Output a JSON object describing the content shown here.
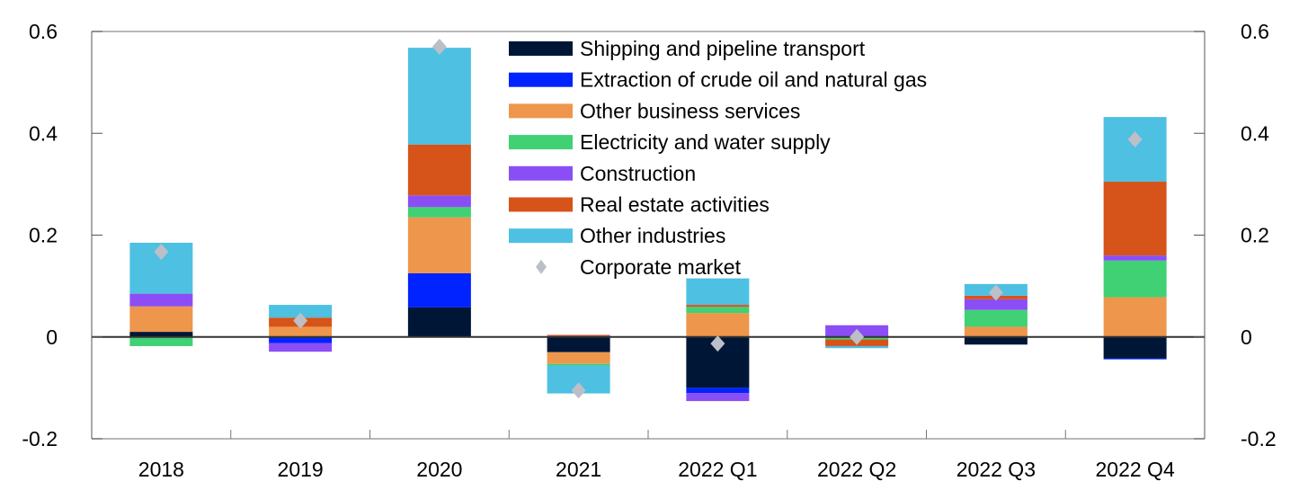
{
  "chart_data": {
    "type": "bar",
    "stacked": true,
    "title": "",
    "xlabel": "",
    "ylabel": "",
    "ylim": [
      -0.2,
      0.6
    ],
    "yticks": [
      -0.2,
      0,
      0.2,
      0.4,
      0.6
    ],
    "ytick_labels": [
      "-0.2",
      "0",
      "0.2",
      "0.4",
      "0.6"
    ],
    "y2ticks": [
      -0.2,
      0,
      0.2,
      0.4,
      0.6
    ],
    "y2tick_labels": [
      "-0.2",
      "0",
      "0.2",
      "0.4",
      "0.6"
    ],
    "grid": false,
    "legend_position": "top-center",
    "categories": [
      "2018",
      "2019",
      "2020",
      "2021",
      "2022 Q1",
      "2022 Q2",
      "2022 Q3",
      "2022 Q4"
    ],
    "series": [
      {
        "name": "Shipping and pipeline transport",
        "color": "#001636",
        "values": [
          0.01,
          0.0,
          0.058,
          -0.03,
          -0.1,
          0.0,
          -0.015,
          -0.042
        ]
      },
      {
        "name": "Extraction of crude oil and natural gas",
        "color": "#0023ff",
        "values": [
          0.0,
          -0.012,
          0.067,
          0.0,
          -0.01,
          -0.001,
          0.0,
          -0.002
        ]
      },
      {
        "name": "Other business services",
        "color": "#ee964b",
        "values": [
          0.05,
          0.02,
          0.11,
          -0.023,
          0.047,
          0.0,
          0.02,
          0.078
        ]
      },
      {
        "name": "Electricity and water supply",
        "color": "#3fd174",
        "values": [
          -0.018,
          0.0,
          0.02,
          -0.003,
          0.012,
          -0.004,
          0.033,
          0.072
        ]
      },
      {
        "name": "Construction",
        "color": "#8b4ef5",
        "values": [
          0.025,
          -0.017,
          0.023,
          0.002,
          -0.016,
          0.023,
          0.021,
          0.01
        ]
      },
      {
        "name": "Real estate activities",
        "color": "#d6531a",
        "values": [
          0.0,
          0.018,
          0.1,
          0.002,
          0.004,
          -0.013,
          0.007,
          0.145
        ]
      },
      {
        "name": "Other industries",
        "color": "#4ec0e2",
        "values": [
          0.1,
          0.025,
          0.19,
          -0.055,
          0.052,
          -0.004,
          0.023,
          0.127
        ]
      }
    ],
    "markers": {
      "name": "Corporate market",
      "color": "#bcbfc7",
      "shape": "diamond",
      "values": [
        0.167,
        0.032,
        0.57,
        -0.105,
        -0.013,
        0.0,
        0.087,
        0.388
      ]
    }
  }
}
